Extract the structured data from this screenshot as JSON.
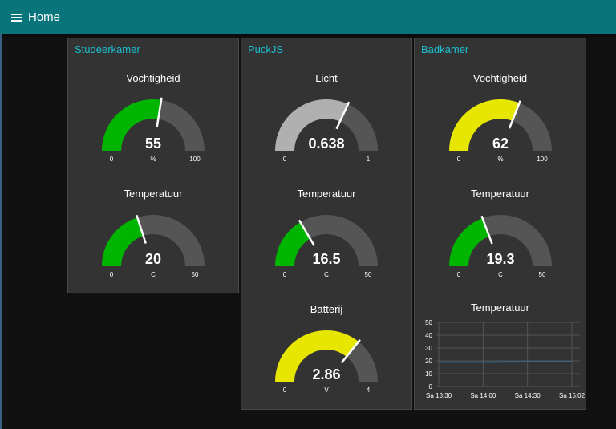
{
  "header": {
    "title": "Home",
    "menu_icon": "menu-icon"
  },
  "groups": [
    {
      "title": "Studeerkamer",
      "gauges": [
        {
          "label": "Vochtigheid",
          "value": "55",
          "unit": "%",
          "min": "0",
          "max": "100",
          "num": 55,
          "nmin": 0,
          "nmax": 100,
          "color": "#00b500"
        },
        {
          "label": "Temperatuur",
          "value": "20",
          "unit": "C",
          "min": "0",
          "max": "50",
          "num": 20,
          "nmin": 0,
          "nmax": 50,
          "color": "#00b500"
        }
      ]
    },
    {
      "title": "PuckJS",
      "gauges": [
        {
          "label": "Licht",
          "value": "0.638",
          "unit": "",
          "min": "0",
          "max": "1",
          "num": 0.638,
          "nmin": 0,
          "nmax": 1,
          "color": "#b0b0b0"
        },
        {
          "label": "Temperatuur",
          "value": "16.5",
          "unit": "C",
          "min": "0",
          "max": "50",
          "num": 16.5,
          "nmin": 0,
          "nmax": 50,
          "color": "#00b500"
        },
        {
          "label": "Batterij",
          "value": "2.86",
          "unit": "V",
          "min": "0",
          "max": "4",
          "num": 2.86,
          "nmin": 0,
          "nmax": 4,
          "color": "#e6e600"
        }
      ]
    },
    {
      "title": "Badkamer",
      "gauges": [
        {
          "label": "Vochtigheid",
          "value": "62",
          "unit": "%",
          "min": "0",
          "max": "100",
          "num": 62,
          "nmin": 0,
          "nmax": 100,
          "color": "#e6e600"
        },
        {
          "label": "Temperatuur",
          "value": "19.3",
          "unit": "C",
          "min": "0",
          "max": "50",
          "num": 19.3,
          "nmin": 0,
          "nmax": 50,
          "color": "#00b500"
        }
      ],
      "chart_label": "Temperatuur"
    }
  ],
  "colors": {
    "header": "#097479",
    "group_title": "#1bbfd0",
    "gauge_bg": "#555555",
    "line": "#1f77b4"
  },
  "chart_data": {
    "type": "line",
    "title": "Temperatuur",
    "x": [
      "Sa 13:30",
      "Sa 14:00",
      "Sa 14:30",
      "Sa 15:02"
    ],
    "x_ticks": [
      "Sa 13:30",
      "Sa 14:00",
      "Sa 14:30",
      "Sa 15:02"
    ],
    "y_ticks": [
      "50",
      "40",
      "30",
      "20",
      "10",
      "0"
    ],
    "ylim": [
      0,
      50
    ],
    "grid": true,
    "series": [
      {
        "values": [
          19,
          19,
          19.2,
          19.3
        ]
      }
    ]
  }
}
